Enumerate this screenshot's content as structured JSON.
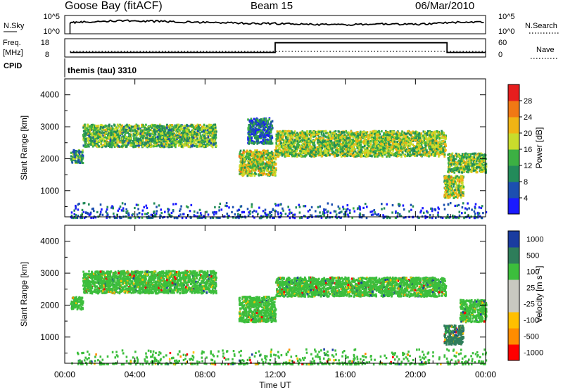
{
  "header": {
    "site": "Goose Bay (fitACF)",
    "beam": "Beam 15",
    "date": "06/Mar/2010"
  },
  "colors": {
    "frame": "#000000",
    "scatter_gray": "#c8c8c0",
    "power_scale": [
      "#1a1aff",
      "#1c4fb0",
      "#238b5a",
      "#3cb043",
      "#c8dc2c",
      "#f0b414",
      "#f07814",
      "#e61e1e"
    ],
    "velocity_scale": [
      "#ff0000",
      "#ff8c00",
      "#ffbf00",
      "#c8c8c0",
      "#c8c8c0",
      "#3cbe3c",
      "#2e7d5a",
      "#1a3ca0"
    ]
  },
  "chart_data": [
    {
      "type": "line",
      "panel": "noise",
      "left_label": "N.Sky",
      "right_label": "N.Search",
      "left_ticks": [
        "10^5",
        "10^0"
      ],
      "right_ticks": [
        "10^5",
        "10^0"
      ],
      "series": [
        {
          "name": "N.Sky",
          "style": "solid",
          "x": [
            0.3,
            1,
            2,
            3,
            4,
            5,
            6,
            7,
            8,
            9,
            10,
            11,
            12,
            13,
            14,
            15,
            16,
            17,
            18,
            19,
            20,
            21,
            22,
            23,
            24
          ],
          "y": [
            3.0,
            3.2,
            3.4,
            3.5,
            3.6,
            3.4,
            3.3,
            3.2,
            3.1,
            3.0,
            2.9,
            2.8,
            2.8,
            2.7,
            2.6,
            2.5,
            2.5,
            2.6,
            2.7,
            2.6,
            2.6,
            2.7,
            3.1,
            3.2,
            3.2
          ]
        },
        {
          "name": "N.Search",
          "style": "dotted",
          "x": [],
          "y": []
        }
      ]
    },
    {
      "type": "line",
      "panel": "frequency",
      "left_label": "Freq. [MHz]",
      "left_ticks": [
        "18",
        "8"
      ],
      "right_label": "Nave",
      "right_ticks": [
        "60",
        "0"
      ],
      "series": [
        {
          "name": "Freq. [MHz]",
          "style": "solid",
          "x": [
            0.3,
            12,
            12,
            21.8,
            21.8,
            24
          ],
          "y": [
            10.5,
            10.5,
            15.8,
            15.8,
            10.5,
            10.5
          ]
        },
        {
          "name": "Nave",
          "style": "dotted",
          "x": [
            0.3,
            24
          ],
          "y": [
            14,
            14
          ]
        }
      ]
    },
    {
      "type": "text",
      "panel": "cpid",
      "label": "CPID",
      "value": "themis (tau) 3310"
    },
    {
      "type": "scatter",
      "panel": "power",
      "ylabel": "Slant Range [km]",
      "yticks": [
        1000,
        2000,
        3000,
        4000
      ],
      "ylim": [
        180,
        4500
      ],
      "xlim": [
        0,
        24
      ],
      "colorbar": {
        "label": "Power [dB]",
        "ticks": [
          "4",
          "8",
          "12",
          "16",
          "20",
          "24",
          "28"
        ],
        "range": [
          0,
          32
        ]
      },
      "regions": [
        {
          "t0": 0.3,
          "t1": 1.0,
          "r0": 1900,
          "r1": 2300,
          "mean": 11
        },
        {
          "t0": 1.0,
          "t1": 8.6,
          "r0": 2400,
          "r1": 3100,
          "mean": 14
        },
        {
          "t0": 9.9,
          "t1": 12.0,
          "r0": 1500,
          "r1": 2300,
          "mean": 18
        },
        {
          "t0": 10.4,
          "t1": 11.8,
          "r0": 2500,
          "r1": 3300,
          "mean": 8
        },
        {
          "t0": 12.0,
          "t1": 21.7,
          "r0": 2100,
          "r1": 2900,
          "mean": 16
        },
        {
          "t0": 21.8,
          "t1": 24.0,
          "r0": 1600,
          "r1": 2200,
          "mean": 15
        },
        {
          "t0": 21.6,
          "t1": 22.7,
          "r0": 800,
          "r1": 1500,
          "mean": 18
        },
        {
          "t0": 0.3,
          "t1": 24.0,
          "r0": 180,
          "r1": 650,
          "mean": 6,
          "sparse": true
        }
      ]
    },
    {
      "type": "scatter",
      "panel": "velocity",
      "ylabel": "Slant Range [km]",
      "yticks": [
        1000,
        2000,
        3000,
        4000
      ],
      "ylim": [
        180,
        4500
      ],
      "xlim": [
        0,
        24
      ],
      "colorbar": {
        "label": "Velocity [m s^-1]",
        "ticks": [
          "1000",
          "500",
          "100",
          "25",
          "-25",
          "-100",
          "-500",
          "-1000"
        ]
      },
      "regions": [
        {
          "t0": 0.3,
          "t1": 1.0,
          "r0": 1900,
          "r1": 2300,
          "mean": 25
        },
        {
          "t0": 1.0,
          "t1": 8.6,
          "r0": 2400,
          "r1": 3100,
          "mean": 25
        },
        {
          "t0": 9.9,
          "t1": 12.0,
          "r0": 1500,
          "r1": 2300,
          "mean": 25
        },
        {
          "t0": 12.0,
          "t1": 21.7,
          "r0": 2300,
          "r1": 2900,
          "mean": 25
        },
        {
          "t0": 21.6,
          "t1": 22.7,
          "r0": 800,
          "r1": 1400,
          "mean": 300
        },
        {
          "t0": 22.5,
          "t1": 24.0,
          "r0": 1500,
          "r1": 2200,
          "mean": 25
        },
        {
          "t0": 0.3,
          "t1": 24.0,
          "r0": 180,
          "r1": 650,
          "mean": 25,
          "sparse": true
        }
      ]
    }
  ],
  "time_axis": {
    "label": "Time UT",
    "ticks": [
      "00:00",
      "04:00",
      "08:00",
      "12:00",
      "16:00",
      "20:00",
      "00:00"
    ]
  }
}
